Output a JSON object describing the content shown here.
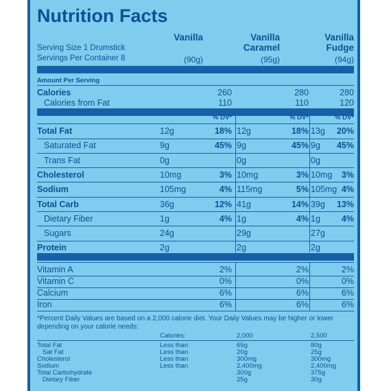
{
  "title": "Nutrition Facts",
  "serving_size": "Serving Size  1 Drumstick",
  "servings_per_container": "Servings Per Container 8",
  "columns": [
    {
      "name_line1": "",
      "name_line2": "Vanilla",
      "weight": "(90g)"
    },
    {
      "name_line1": "Vanilla",
      "name_line2": "Caramel",
      "weight": "(95g)"
    },
    {
      "name_line1": "Vanilla",
      "name_line2": "Fudge",
      "weight": "(94g)"
    }
  ],
  "amount_per_serving": "Amount Per Serving",
  "calories": {
    "label": "Calories",
    "values": [
      "260",
      "280",
      "280"
    ]
  },
  "calories_from_fat": {
    "label": "Calories from Fat",
    "values": [
      "110",
      "110",
      "120"
    ]
  },
  "dv_header": "% DV*",
  "nutrients": [
    {
      "label": "Total Fat",
      "bold": true,
      "indent": false,
      "cells": [
        [
          "12g",
          "18%"
        ],
        [
          "12g",
          "18%"
        ],
        [
          "13g",
          "20%"
        ]
      ]
    },
    {
      "label": "Saturated Fat",
      "bold": false,
      "indent": true,
      "cells": [
        [
          "9g",
          "45%"
        ],
        [
          "9g",
          "45%"
        ],
        [
          "9g",
          "45%"
        ]
      ]
    },
    {
      "label": "Trans Fat",
      "bold": false,
      "indent": true,
      "cells": [
        [
          "0g",
          ""
        ],
        [
          "0g",
          ""
        ],
        [
          "0g",
          ""
        ]
      ]
    },
    {
      "label": "Cholesterol",
      "bold": true,
      "indent": false,
      "cells": [
        [
          "10mg",
          "3%"
        ],
        [
          "10mg",
          "3%"
        ],
        [
          "10mg",
          "3%"
        ]
      ]
    },
    {
      "label": "Sodium",
      "bold": true,
      "indent": false,
      "cells": [
        [
          "105mg",
          "4%"
        ],
        [
          "115mg",
          "5%"
        ],
        [
          "105mg",
          "4%"
        ]
      ]
    },
    {
      "label": "Total Carb",
      "bold": true,
      "indent": false,
      "cells": [
        [
          "36g",
          "12%"
        ],
        [
          "41g",
          "14%"
        ],
        [
          "39g",
          "13%"
        ]
      ]
    },
    {
      "label": "Dietary Fiber",
      "bold": false,
      "indent": true,
      "cells": [
        [
          "1g",
          "4%"
        ],
        [
          "1g",
          "4%"
        ],
        [
          "1g",
          "4%"
        ]
      ]
    },
    {
      "label": "Sugars",
      "bold": false,
      "indent": true,
      "cells": [
        [
          "24g",
          ""
        ],
        [
          "29g",
          ""
        ],
        [
          "27g",
          ""
        ]
      ]
    },
    {
      "label": "Protein",
      "bold": true,
      "indent": false,
      "cells": [
        [
          "2g",
          ""
        ],
        [
          "2g",
          ""
        ],
        [
          "2g",
          ""
        ]
      ]
    }
  ],
  "vitamins": [
    {
      "label": "Vitamin A",
      "values": [
        "2%",
        "2%",
        "2%"
      ]
    },
    {
      "label": "Vitamin C",
      "values": [
        "0%",
        "0%",
        "0%"
      ]
    },
    {
      "label": "Calcium",
      "values": [
        "6%",
        "6%",
        "6%"
      ]
    },
    {
      "label": "Iron",
      "values": [
        "6%",
        "6%",
        "6%"
      ]
    }
  ],
  "footnote": "*Percent Daily Values are based on a 2,000 calorie diet. Your Daily Values may be higher or lower depending on your calorie needs:",
  "footer_table": {
    "calories_label": "Calories:",
    "cal_2000": "2,000",
    "cal_2500": "2,500",
    "rows": [
      {
        "label": "Total Fat",
        "qual": "Less than",
        "v2000": "65g",
        "v2500": "80g"
      },
      {
        "label": "   Sat Fat",
        "qual": "Less than",
        "v2000": "20g",
        "v2500": "25g"
      },
      {
        "label": "Cholesterol",
        "qual": "Less than",
        "v2000": "300mg",
        "v2500": "300mg"
      },
      {
        "label": "Sodium",
        "qual": "Less than",
        "v2000": "2,400mg",
        "v2500": "2,400mg"
      },
      {
        "label": "Total Carbohydrate",
        "qual": "",
        "v2000": "300g",
        "v2500": "375g"
      },
      {
        "label": "   Dietary Fiber",
        "qual": "",
        "v2000": "25g",
        "v2500": "30g"
      }
    ]
  },
  "colors": {
    "background": "#7fcdee",
    "ink": "#0e4f95",
    "rules": "#1660a8"
  }
}
